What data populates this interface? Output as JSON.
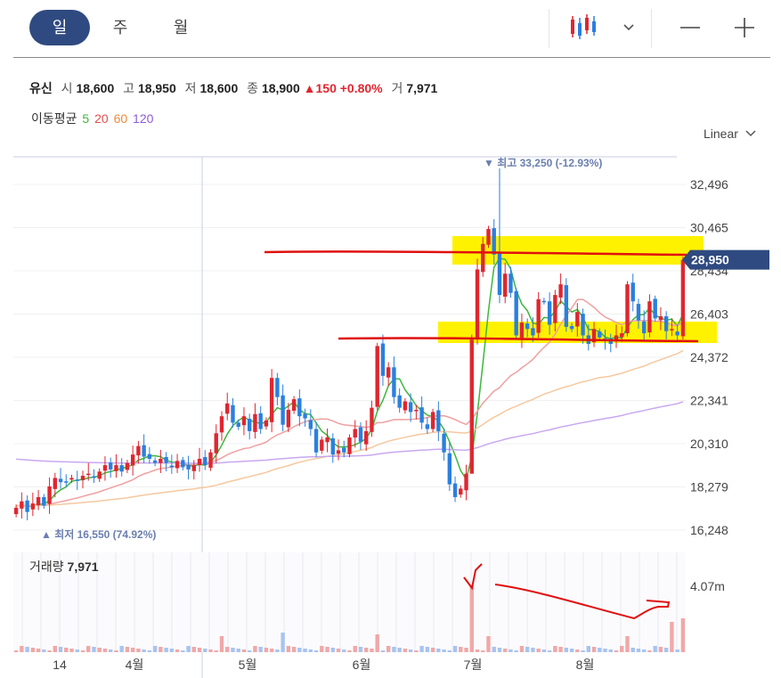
{
  "tabs": [
    "일",
    "주",
    "월"
  ],
  "active_tab": "일",
  "stock": {
    "name": "유신",
    "open_label": "시",
    "open": "18,600",
    "high_label": "고",
    "high": "18,950",
    "low_label": "저",
    "low": "18,600",
    "close_label": "종",
    "close": "18,900",
    "change": "▲150 +0.80%",
    "volume_label": "거",
    "volume": "7,971"
  },
  "ma_legend": {
    "label": "이동평균",
    "periods": [
      {
        "text": "5",
        "color": "#3cb83c"
      },
      {
        "text": "20",
        "color": "#e05050"
      },
      {
        "text": "60",
        "color": "#f08a3c"
      },
      {
        "text": "120",
        "color": "#8a5ad8"
      }
    ]
  },
  "scale_label": "Linear",
  "annotations": {
    "high_marker": "▼ 최고 33,250 (-12.93%)",
    "low_marker": "▲ 최저 16,550 (74.92%)"
  },
  "current_price_tag": "28,950",
  "volume_panel": {
    "label": "거래량",
    "value": "7,971",
    "axis_label": "4.07m"
  },
  "colors": {
    "up": "#e0262f",
    "down": "#2b7fe0",
    "tab_active": "#2f4a80",
    "highlight": "#fff200",
    "drawn_line": "#e01010"
  },
  "chart_data": {
    "type": "candlestick",
    "y_ticks": [
      "32,496",
      "30,465",
      "28,434",
      "26,403",
      "24,372",
      "22,341",
      "20,310",
      "18,279",
      "16,248"
    ],
    "x_ticks": [
      "14",
      "4월",
      "5월",
      "6월",
      "7월",
      "8월"
    ],
    "ylim": [
      16248,
      33250
    ],
    "closes": [
      17300,
      17600,
      17100,
      17500,
      17800,
      17400,
      18300,
      18700,
      18500,
      18500,
      18700,
      18600,
      18800,
      18900,
      18700,
      19000,
      19300,
      19100,
      19300,
      19000,
      19400,
      19800,
      20200,
      19700,
      19600,
      19400,
      19600,
      19400,
      19200,
      19500,
      19200,
      19100,
      19300,
      19600,
      19300,
      19900,
      20800,
      21600,
      22200,
      21300,
      21100,
      21600,
      20900,
      21700,
      21000,
      21400,
      23400,
      22500,
      21200,
      21900,
      22400,
      21600,
      21500,
      21000,
      19900,
      20500,
      20600,
      19800,
      20000,
      19900,
      20600,
      21000,
      20400,
      20900,
      22000,
      24900,
      23500,
      23900,
      22500,
      22000,
      22300,
      21800,
      21900,
      21300,
      21000,
      21800,
      20900,
      19900,
      18400,
      17800,
      18200,
      18900,
      25200,
      28500,
      29700,
      30400,
      29200,
      27300,
      28300,
      27400,
      25400,
      26000,
      25700,
      25400,
      27100,
      27000,
      25900,
      27300,
      27800,
      25800,
      25700,
      26500,
      25400,
      25000,
      25700,
      25300,
      25200,
      25000,
      25400,
      25500,
      27800,
      27000,
      26100,
      25500,
      27000,
      26200,
      26300,
      25600,
      25700,
      25400,
      28950
    ],
    "ma_windows": [
      5,
      20,
      60,
      120
    ],
    "annotated_high": "33,250",
    "annotated_low": "16,550"
  }
}
